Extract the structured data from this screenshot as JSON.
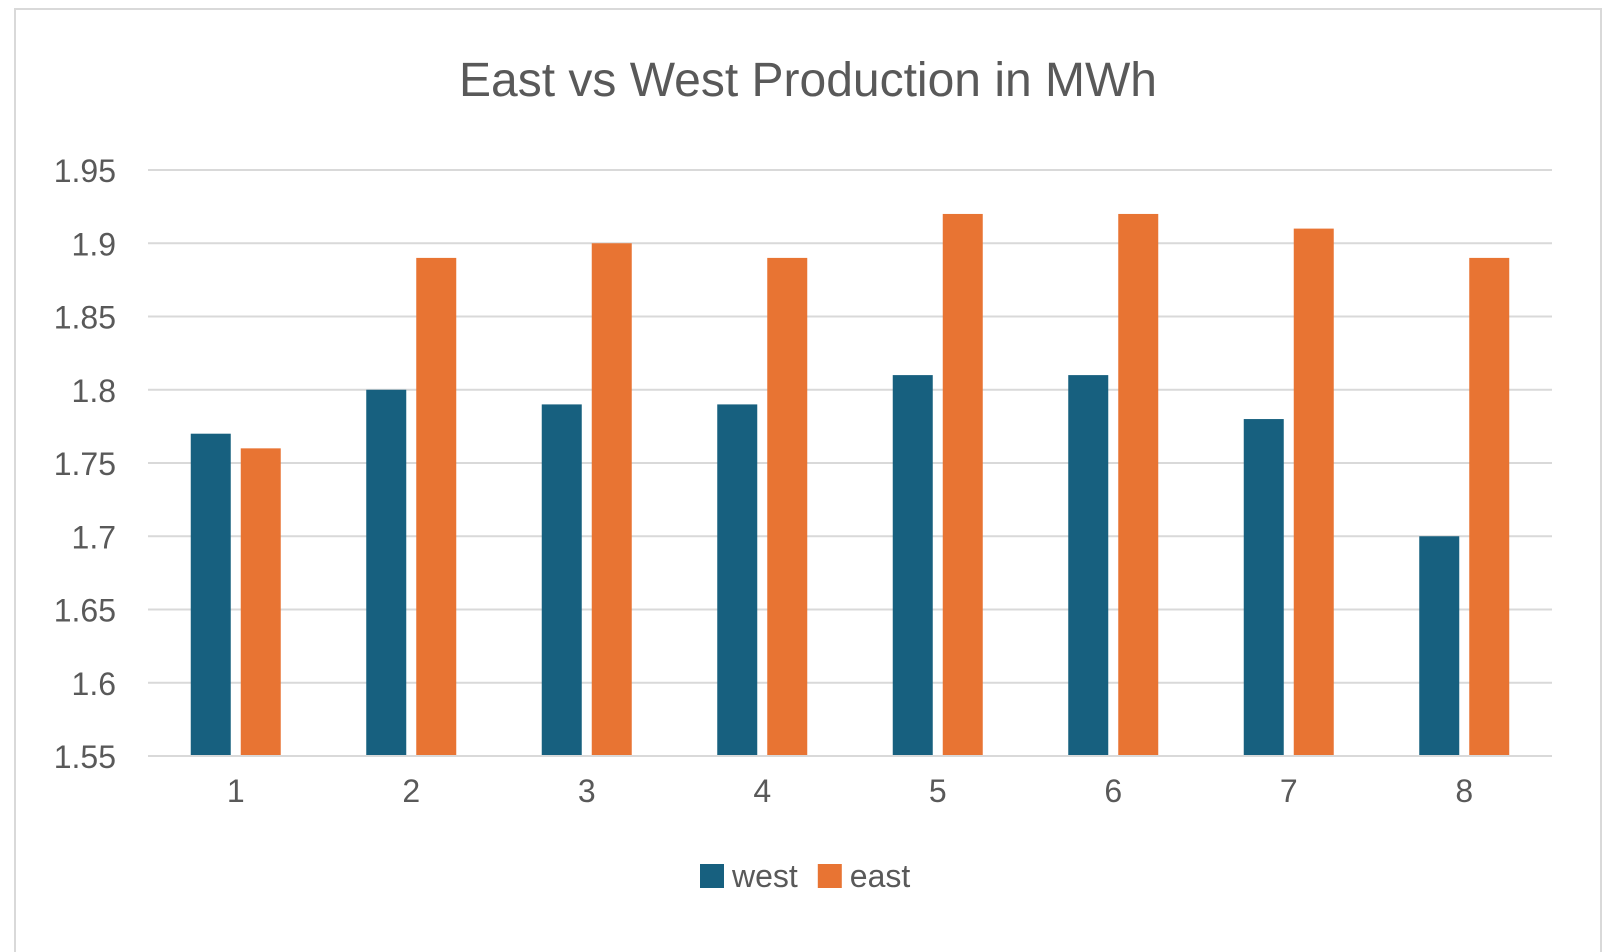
{
  "chart_data": {
    "type": "bar",
    "title": "East vs West Production in MWh",
    "xlabel": "",
    "ylabel": "",
    "categories": [
      "1",
      "2",
      "3",
      "4",
      "5",
      "6",
      "7",
      "8"
    ],
    "series": [
      {
        "name": "west",
        "color": "#17607f",
        "values": [
          1.77,
          1.8,
          1.79,
          1.79,
          1.81,
          1.81,
          1.78,
          1.7
        ]
      },
      {
        "name": "east",
        "color": "#e87433",
        "values": [
          1.76,
          1.89,
          1.9,
          1.89,
          1.92,
          1.92,
          1.91,
          1.89
        ]
      }
    ],
    "ylim": [
      1.55,
      1.95
    ],
    "yticks": [
      "1.95",
      "1.9",
      "1.85",
      "1.8",
      "1.75",
      "1.7",
      "1.65",
      "1.6",
      "1.55"
    ],
    "grid": true,
    "legend_position": "bottom"
  }
}
